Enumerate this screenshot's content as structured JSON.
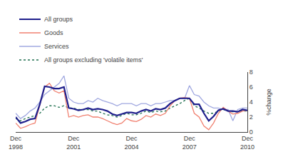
{
  "chart_data": {
    "type": "line",
    "ylabel": "%change",
    "categories": [
      "Dec\n1998",
      null,
      null,
      null,
      null,
      null,
      null,
      null,
      null,
      null,
      null,
      null,
      "Dec\n2001",
      null,
      null,
      null,
      null,
      null,
      null,
      null,
      null,
      null,
      null,
      null,
      "Dec\n2004",
      null,
      null,
      null,
      null,
      null,
      null,
      null,
      null,
      null,
      null,
      null,
      "Dec\n2007",
      null,
      null,
      null,
      null,
      null,
      null,
      null,
      null,
      null,
      null,
      null,
      "Dec\n2010"
    ],
    "series": [
      {
        "name": "All groups",
        "color": "#1f1f8c",
        "values": [
          2.0,
          1.2,
          1.4,
          1.7,
          1.8,
          3.7,
          6.1,
          6.0,
          5.8,
          5.8,
          6.0,
          3.2,
          3.1,
          2.9,
          3.0,
          3.2,
          3.0,
          3.1,
          3.0,
          2.8,
          2.4,
          2.2,
          2.4,
          2.6,
          2.6,
          2.5,
          2.8,
          3.0,
          2.8,
          3.1,
          3.0,
          3.2,
          3.8,
          4.2,
          4.5,
          4.5,
          4.5,
          3.7,
          3.7,
          2.5,
          1.5,
          2.1,
          2.9,
          3.1,
          2.8,
          2.8,
          2.7,
          3.0,
          2.9
        ]
      },
      {
        "name": "Goods",
        "color": "#f08070",
        "values": [
          1.2,
          0.5,
          0.7,
          1.0,
          1.2,
          3.5,
          6.0,
          6.5,
          5.5,
          5.2,
          5.5,
          2.0,
          2.2,
          2.0,
          2.2,
          2.3,
          2.0,
          2.0,
          1.8,
          1.5,
          1.2,
          1.0,
          1.2,
          1.8,
          1.5,
          1.4,
          1.7,
          2.2,
          2.0,
          2.4,
          2.2,
          2.5,
          3.5,
          4.2,
          4.5,
          4.6,
          4.5,
          2.5,
          2.0,
          0.8,
          0.3,
          1.2,
          2.5,
          3.3,
          2.8,
          2.4,
          2.5,
          2.8,
          2.9
        ]
      },
      {
        "name": "Services",
        "color": "#a0a8e0",
        "values": [
          2.5,
          1.8,
          2.2,
          2.8,
          3.2,
          4.0,
          5.0,
          5.5,
          6.0,
          6.5,
          7.5,
          4.5,
          4.0,
          3.8,
          3.8,
          4.2,
          4.0,
          4.5,
          4.2,
          4.0,
          3.8,
          3.5,
          3.8,
          3.8,
          3.8,
          3.5,
          3.8,
          3.8,
          3.5,
          3.8,
          3.8,
          4.0,
          4.2,
          4.2,
          4.5,
          4.5,
          6.2,
          5.0,
          4.8,
          4.0,
          3.5,
          3.2,
          3.2,
          3.0,
          3.0,
          1.5,
          3.0,
          3.2,
          3.2
        ]
      },
      {
        "name": "All groups excluding 'volatile items'",
        "color": "#207050",
        "line_style": "dotted",
        "values": [
          1.8,
          1.5,
          1.8,
          2.0,
          2.2,
          2.5,
          3.2,
          3.5,
          3.5,
          3.3,
          3.5,
          3.2,
          3.2,
          3.0,
          3.0,
          3.0,
          2.8,
          2.8,
          2.5,
          2.3,
          2.2,
          2.0,
          2.2,
          2.5,
          2.3,
          2.3,
          2.5,
          2.8,
          2.6,
          2.8,
          2.7,
          2.8,
          3.2,
          3.5,
          3.8,
          4.2,
          4.5,
          3.5,
          3.2,
          2.8,
          2.5,
          2.5,
          2.8,
          3.0,
          2.8,
          2.7,
          2.7,
          2.8,
          2.8
        ]
      }
    ],
    "ylim": [
      0,
      8
    ],
    "yticks": [
      0,
      2,
      4,
      6,
      8
    ],
    "grid": false,
    "legend": "top"
  }
}
